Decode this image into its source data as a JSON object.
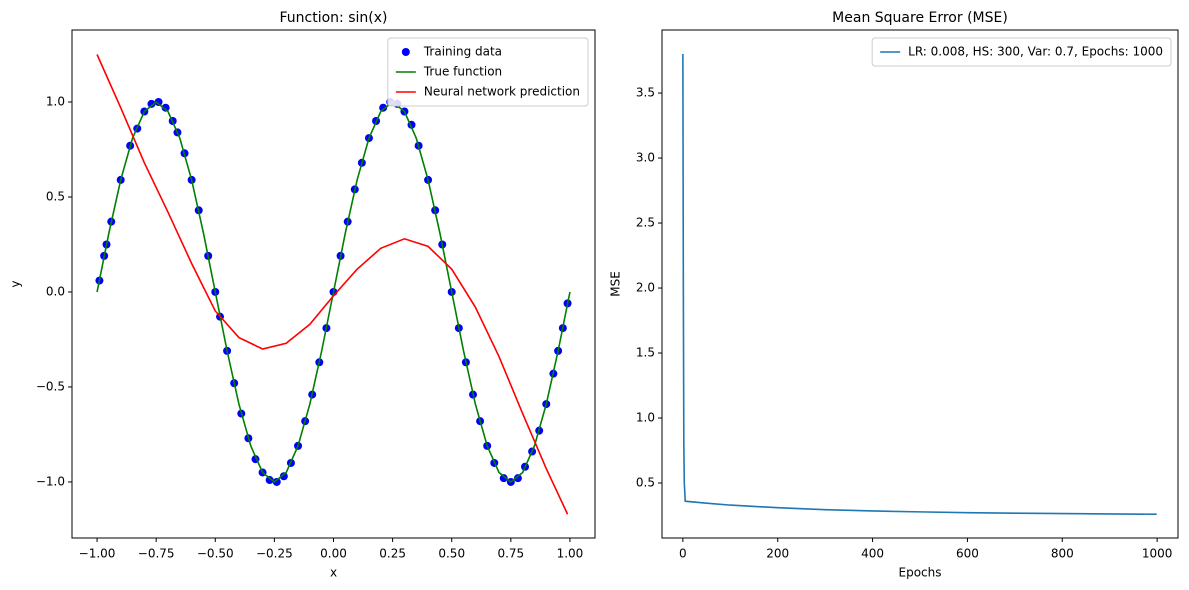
{
  "chart_data": [
    {
      "type": "line",
      "title": "Function: sin(x)",
      "x_label": "x",
      "y_label": "y",
      "xlim": [
        -1.106,
        1.106
      ],
      "ylim": [
        -1.295,
        1.379
      ],
      "xticks": [
        {
          "value": -1,
          "label": "−1.00"
        },
        {
          "value": -0.75,
          "label": "−0.75"
        },
        {
          "value": -0.5,
          "label": "−0.50"
        },
        {
          "value": -0.25,
          "label": "−0.25"
        },
        {
          "value": 0,
          "label": "0.00"
        },
        {
          "value": 0.25,
          "label": "0.25"
        },
        {
          "value": 0.5,
          "label": "0.50"
        },
        {
          "value": 0.75,
          "label": "0.75"
        },
        {
          "value": 1,
          "label": "1.00"
        }
      ],
      "yticks": [
        {
          "value": -1,
          "label": "−1.0"
        },
        {
          "value": -0.5,
          "label": "−0.5"
        },
        {
          "value": 0,
          "label": "0.0"
        },
        {
          "value": 0.5,
          "label": "0.5"
        },
        {
          "value": 1,
          "label": "1.0"
        }
      ],
      "legend": "upper right",
      "series": [
        {
          "name": "Training data",
          "type": "scatter",
          "color": "#0000ff",
          "x": [
            -0.99,
            -0.97,
            -0.96,
            -0.94,
            -0.9,
            -0.86,
            -0.83,
            -0.8,
            -0.77,
            -0.74,
            -0.71,
            -0.68,
            -0.66,
            -0.63,
            -0.6,
            -0.57,
            -0.53,
            -0.5,
            -0.48,
            -0.45,
            -0.42,
            -0.39,
            -0.36,
            -0.33,
            -0.3,
            -0.27,
            -0.24,
            -0.21,
            -0.18,
            -0.15,
            -0.12,
            -0.09,
            -0.06,
            -0.03,
            0,
            0.03,
            0.06,
            0.09,
            0.12,
            0.15,
            0.18,
            0.21,
            0.24,
            0.27,
            0.3,
            0.33,
            0.36,
            0.4,
            0.43,
            0.46,
            0.5,
            0.53,
            0.56,
            0.59,
            0.62,
            0.65,
            0.68,
            0.72,
            0.75,
            0.78,
            0.81,
            0.84,
            0.87,
            0.9,
            0.93,
            0.95,
            0.97,
            0.99
          ],
          "values": [
            0.06,
            0.19,
            0.25,
            0.37,
            0.59,
            0.77,
            0.86,
            0.95,
            0.99,
            1.0,
            0.97,
            0.9,
            0.84,
            0.73,
            0.59,
            0.43,
            0.19,
            0,
            -0.13,
            -0.31,
            -0.48,
            -0.64,
            -0.77,
            -0.88,
            -0.95,
            -0.99,
            -1.0,
            -0.97,
            -0.9,
            -0.81,
            -0.68,
            -0.54,
            -0.37,
            -0.19,
            0,
            0.19,
            0.37,
            0.54,
            0.68,
            0.81,
            0.9,
            0.97,
            1.0,
            0.99,
            0.95,
            0.88,
            0.77,
            0.59,
            0.43,
            0.25,
            0,
            -0.19,
            -0.37,
            -0.54,
            -0.68,
            -0.81,
            -0.9,
            -0.98,
            -1.0,
            -0.98,
            -0.92,
            -0.84,
            -0.73,
            -0.59,
            -0.43,
            -0.31,
            -0.19,
            -0.06
          ]
        },
        {
          "name": "True function",
          "type": "line",
          "color": "#008000",
          "x": [
            -1,
            -0.95,
            -0.9,
            -0.85,
            -0.8,
            -0.75,
            -0.7,
            -0.65,
            -0.6,
            -0.55,
            -0.5,
            -0.45,
            -0.4,
            -0.35,
            -0.3,
            -0.25,
            -0.2,
            -0.15,
            -0.1,
            -0.05,
            0,
            0.05,
            0.1,
            0.15,
            0.2,
            0.25,
            0.3,
            0.35,
            0.4,
            0.45,
            0.5,
            0.55,
            0.6,
            0.65,
            0.7,
            0.75,
            0.8,
            0.85,
            0.9,
            0.95,
            1
          ],
          "values": [
            0,
            0.31,
            0.59,
            0.81,
            0.95,
            1,
            0.95,
            0.81,
            0.59,
            0.31,
            0,
            -0.31,
            -0.59,
            -0.81,
            -0.95,
            -1,
            -0.95,
            -0.81,
            -0.59,
            -0.31,
            0,
            0.31,
            0.59,
            0.81,
            0.95,
            1,
            0.95,
            0.81,
            0.59,
            0.31,
            0,
            -0.31,
            -0.59,
            -0.81,
            -0.95,
            -1,
            -0.95,
            -0.81,
            -0.59,
            -0.31,
            0
          ]
        },
        {
          "name": "Neural network prediction",
          "type": "line",
          "color": "#ff0000",
          "x": [
            -1,
            -0.9,
            -0.8,
            -0.7,
            -0.6,
            -0.5,
            -0.4,
            -0.3,
            -0.2,
            -0.1,
            0,
            0.1,
            0.2,
            0.3,
            0.4,
            0.5,
            0.6,
            0.7,
            0.8,
            0.9,
            0.99
          ],
          "values": [
            1.25,
            0.97,
            0.68,
            0.42,
            0.15,
            -0.1,
            -0.24,
            -0.3,
            -0.27,
            -0.17,
            -0.02,
            0.12,
            0.23,
            0.28,
            0.24,
            0.12,
            -0.08,
            -0.34,
            -0.64,
            -0.93,
            -1.17
          ]
        }
      ]
    },
    {
      "type": "line",
      "title": "Mean Square Error (MSE)",
      "x_label": "Epochs",
      "y_label": "MSE",
      "xlim": [
        -44,
        1044
      ],
      "ylim": [
        0.077,
        3.985
      ],
      "xticks": [
        0,
        200,
        400,
        600,
        800,
        1000
      ],
      "yticks": [
        0.5,
        {
          "value": 1,
          "label": "1.0"
        },
        1.5,
        {
          "value": 2,
          "label": "2.0"
        },
        2.5,
        {
          "value": 3,
          "label": "3.0"
        },
        3.5
      ],
      "legend": "upper right",
      "series": [
        {
          "name": "LR: 0.008, HS: 300, Var: 0.7, Epochs: 1000",
          "type": "line",
          "color": "#1f77b4",
          "x": [
            0,
            1,
            2,
            3,
            5,
            50,
            100,
            200,
            300,
            400,
            500,
            600,
            700,
            800,
            900,
            999
          ],
          "values": [
            3.8,
            2.0,
            0.8,
            0.5,
            0.36,
            0.345,
            0.33,
            0.31,
            0.295,
            0.285,
            0.278,
            0.272,
            0.268,
            0.265,
            0.262,
            0.26
          ]
        }
      ]
    }
  ]
}
